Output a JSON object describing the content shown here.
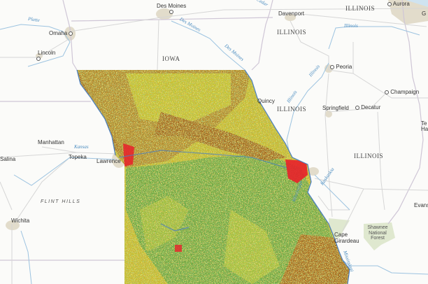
{
  "map": {
    "layer_colors": {
      "cropland_brown": "#a8691e",
      "grass_yellow": "#d9cf2a",
      "forest_green": "#5aa648",
      "urban_red": "#e8202a",
      "water_blue": "#4a7fc0",
      "basemap": "#fbfbf9",
      "urban_area": "#e2dccb",
      "park_green": "#dfe8cf"
    },
    "cities": [
      "Des Moines",
      "Omaha",
      "Lincoln",
      "Davenport",
      "Aurora",
      "Peoria",
      "Quincy",
      "Springfield",
      "Decatur",
      "Champaign",
      "Manhattan",
      "Topeka",
      "Lawrence",
      "Salina",
      "Wichita",
      "Cape Girardeau",
      "Evans",
      "Te",
      "Ha",
      "G"
    ],
    "states": [
      "IOWA",
      "ILLINOIS",
      "ILLINOIS",
      "ILLINOIS",
      "ILLINOIS"
    ],
    "rivers": [
      "Platte",
      "Des Moines",
      "Des Moines",
      "Cedar",
      "Illinois",
      "Illinois",
      "Illinois",
      "Kansas",
      "Kaskaskia",
      "Mississippi",
      "Mississippi"
    ],
    "regions": [
      "FLINT HILLS"
    ],
    "parks": [
      "Shawnee National Forest"
    ]
  }
}
